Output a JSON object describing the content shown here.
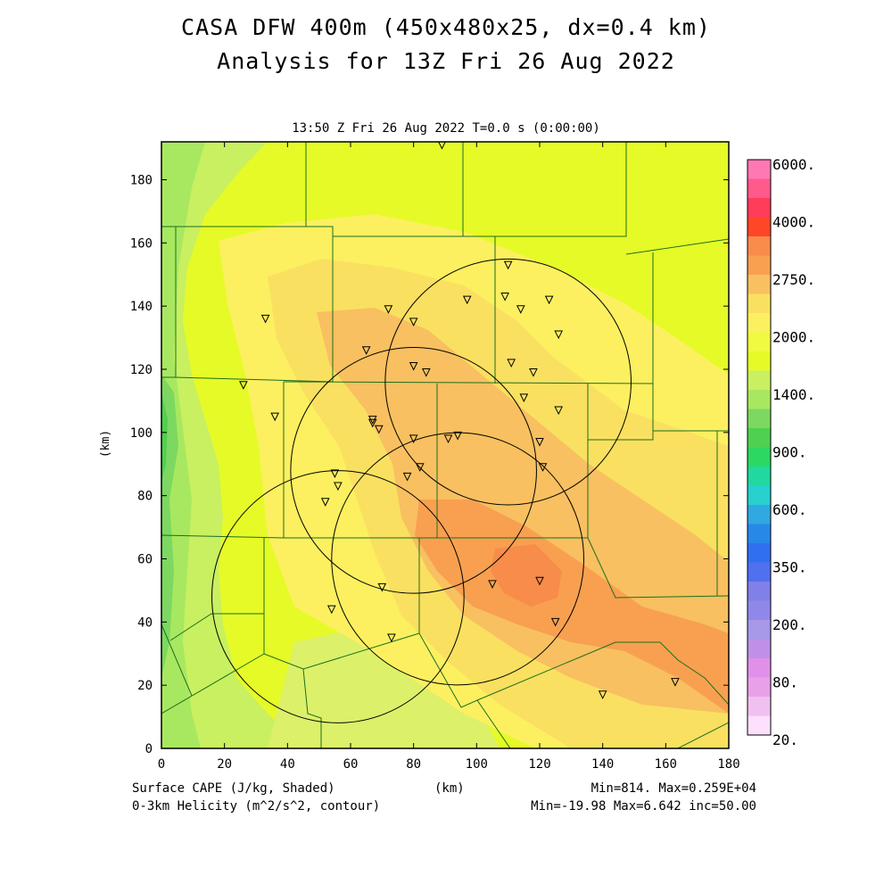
{
  "header": {
    "title_line1": "CASA DFW 400m (450x480x25, dx=0.4 km)",
    "title_line2": "Analysis for 13Z Fri 26 Aug 2022",
    "subtitle": "13:50 Z Fri 26 Aug 2022   T=0.0 s (0:00:00)"
  },
  "axes": {
    "xlabel": "(km)",
    "ylabel": "(km)",
    "x_ticks": [
      "0",
      "20",
      "40",
      "60",
      "80",
      "100",
      "120",
      "140",
      "160",
      "180"
    ],
    "y_ticks": [
      "0",
      "20",
      "40",
      "60",
      "80",
      "100",
      "120",
      "140",
      "160",
      "180"
    ],
    "xlim": [
      0,
      180
    ],
    "ylim": [
      0,
      192
    ]
  },
  "footer": {
    "field1": "Surface CAPE (J/kg, Shaded)",
    "field2": "0-3km Helicity (m^2/s^2, contour)",
    "xunit": "(km)",
    "stats1": "Min=814. Max=0.259E+04",
    "stats2": "Min=-19.98 Max=6.642 inc=50.00"
  },
  "colorbar": {
    "labels": [
      "6000.",
      "4000.",
      "2750.",
      "2000.",
      "1400.",
      "900.",
      "600.",
      "350.",
      "200.",
      "80.",
      "20."
    ],
    "colors": [
      "#ff78b4",
      "#ff5a8c",
      "#ff3c5a",
      "#ff4628",
      "#f88c4a",
      "#f8a050",
      "#f8c060",
      "#fae060",
      "#fcf060",
      "#f0fa40",
      "#e6fa28",
      "#c8f060",
      "#a8e860",
      "#7cd860",
      "#50d050",
      "#2cd860",
      "#20d8a0",
      "#28d0d0",
      "#30a8e0",
      "#2888e8",
      "#3070f0",
      "#5070f0",
      "#8080e8",
      "#9088e8",
      "#a898e8",
      "#c090e8",
      "#e090e8",
      "#e8a0e8",
      "#f0c0f0",
      "#fce0fc"
    ]
  },
  "map": {
    "radar_circles": [
      {
        "cx": 110,
        "cy": 116,
        "r": 39
      },
      {
        "cx": 80,
        "cy": 88,
        "r": 39
      },
      {
        "cx": 94,
        "cy": 60,
        "r": 40
      },
      {
        "cx": 56,
        "cy": 48,
        "r": 40
      }
    ],
    "stations": [
      [
        89,
        191
      ],
      [
        110,
        153
      ],
      [
        97,
        142
      ],
      [
        109,
        143
      ],
      [
        114,
        139
      ],
      [
        123,
        142
      ],
      [
        33,
        136
      ],
      [
        72,
        139
      ],
      [
        80,
        135
      ],
      [
        126,
        131
      ],
      [
        65,
        126
      ],
      [
        80,
        121
      ],
      [
        84,
        119
      ],
      [
        111,
        122
      ],
      [
        118,
        119
      ],
      [
        26,
        115
      ],
      [
        115,
        111
      ],
      [
        126,
        107
      ],
      [
        36,
        105
      ],
      [
        67,
        104
      ],
      [
        67,
        103
      ],
      [
        69,
        101
      ],
      [
        91,
        98
      ],
      [
        94,
        99
      ],
      [
        80,
        98
      ],
      [
        120,
        97
      ],
      [
        121,
        89
      ],
      [
        82,
        89
      ],
      [
        78,
        86
      ],
      [
        55,
        87
      ],
      [
        56,
        83
      ],
      [
        52,
        78
      ],
      [
        70,
        51
      ],
      [
        105,
        52
      ],
      [
        120,
        53
      ],
      [
        54,
        44
      ],
      [
        73,
        35
      ],
      [
        125,
        40
      ],
      [
        140,
        17
      ],
      [
        163,
        21
      ]
    ]
  }
}
